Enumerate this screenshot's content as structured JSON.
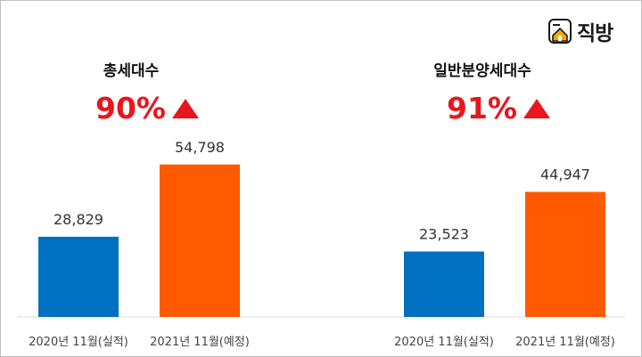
{
  "logo": {
    "text": "직방"
  },
  "colors": {
    "series_2020": "#0070c0",
    "series_2021": "#ff5a00",
    "highlight": "#e8161d"
  },
  "chart_data": [
    {
      "type": "bar",
      "title": "총세대수",
      "growth": "90%",
      "categories": [
        "2020년 11월(실적)",
        "2021년 11월(예정)"
      ],
      "values": [
        28829,
        54798
      ],
      "value_labels": [
        "28,829",
        "54,798"
      ],
      "ylim": [
        0,
        80000
      ],
      "grid": false,
      "legend": "none"
    },
    {
      "type": "bar",
      "title": "일반분양세대수",
      "growth": "91%",
      "categories": [
        "2020년 11월(실적)",
        "2021년 11월(예정)"
      ],
      "values": [
        23523,
        44947
      ],
      "value_labels": [
        "23,523",
        "44,947"
      ],
      "ylim": [
        0,
        80000
      ],
      "grid": false,
      "legend": "none"
    }
  ]
}
